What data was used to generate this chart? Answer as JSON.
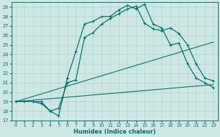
{
  "xlabel": "Humidex (Indice chaleur)",
  "xlim": [
    -0.5,
    23.5
  ],
  "ylim": [
    17,
    29.5
  ],
  "yticks": [
    17,
    18,
    19,
    20,
    21,
    22,
    23,
    24,
    25,
    26,
    27,
    28,
    29
  ],
  "xticks": [
    0,
    1,
    2,
    3,
    4,
    5,
    6,
    7,
    8,
    9,
    10,
    11,
    12,
    13,
    14,
    15,
    16,
    17,
    18,
    19,
    20,
    21,
    22,
    23
  ],
  "bg_color": "#cde8e4",
  "grid_color": "#b0d4cc",
  "line_color": "#006b6b",
  "line1_x": [
    0,
    1,
    2,
    3,
    4,
    5,
    6,
    7,
    8,
    9,
    10,
    11,
    12,
    13,
    14,
    15,
    16,
    17,
    18,
    19,
    20,
    21,
    22,
    23
  ],
  "line1_y": [
    19,
    19,
    19,
    19,
    18,
    17.5,
    21.5,
    24.3,
    27.2,
    27.5,
    28.0,
    28.0,
    28.7,
    29.2,
    28.8,
    29.3,
    27.2,
    26.8,
    25.0,
    25.2,
    23.0,
    21.5,
    21.0,
    20.5
  ],
  "line2_x": [
    0,
    2,
    3,
    4,
    5,
    6,
    7,
    8,
    9,
    10,
    11,
    12,
    13,
    14,
    15,
    16,
    17,
    18,
    19,
    20,
    21,
    22,
    23
  ],
  "line2_y": [
    19,
    19,
    18.8,
    18.0,
    18.3,
    21.0,
    21.3,
    25.8,
    26.3,
    27.2,
    27.8,
    28.3,
    28.8,
    29.1,
    27.3,
    26.7,
    26.5,
    26.8,
    26.2,
    25.0,
    23.0,
    21.5,
    21.2
  ],
  "line3_x": [
    0,
    23
  ],
  "line3_y": [
    19,
    20.8
  ],
  "line4_x": [
    0,
    23
  ],
  "line4_y": [
    19,
    25.3
  ]
}
